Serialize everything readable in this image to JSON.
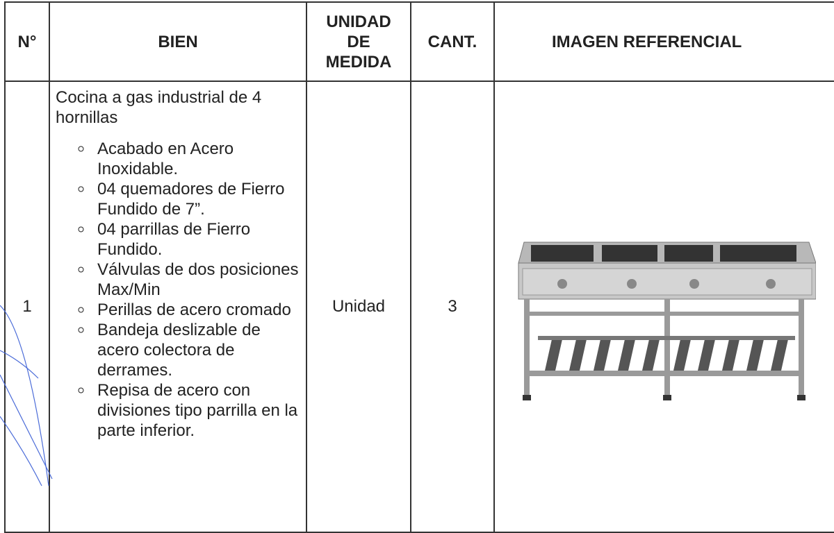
{
  "table": {
    "headers": [
      "N°",
      "BIEN",
      "UNIDAD DE MEDIDA",
      "CANT.",
      "IMAGEN REFERENCIAL"
    ],
    "rows": [
      {
        "number": "1",
        "item": {
          "title": "Cocina a gas industrial de 4 hornillas",
          "features": [
            "Acabado en Acero Inoxidable.",
            "04 quemadores de Fierro Fundido de 7”.",
            "04 parrillas de Fierro Fundido.",
            "Válvulas de dos posiciones Max/Min",
            "Perillas de acero cromado",
            "Bandeja deslizable de acero colectora de derrames.",
            "Repisa de acero con divisiones tipo parrilla en la parte inferior."
          ]
        },
        "unit": "Unidad",
        "quantity": "3"
      }
    ]
  }
}
